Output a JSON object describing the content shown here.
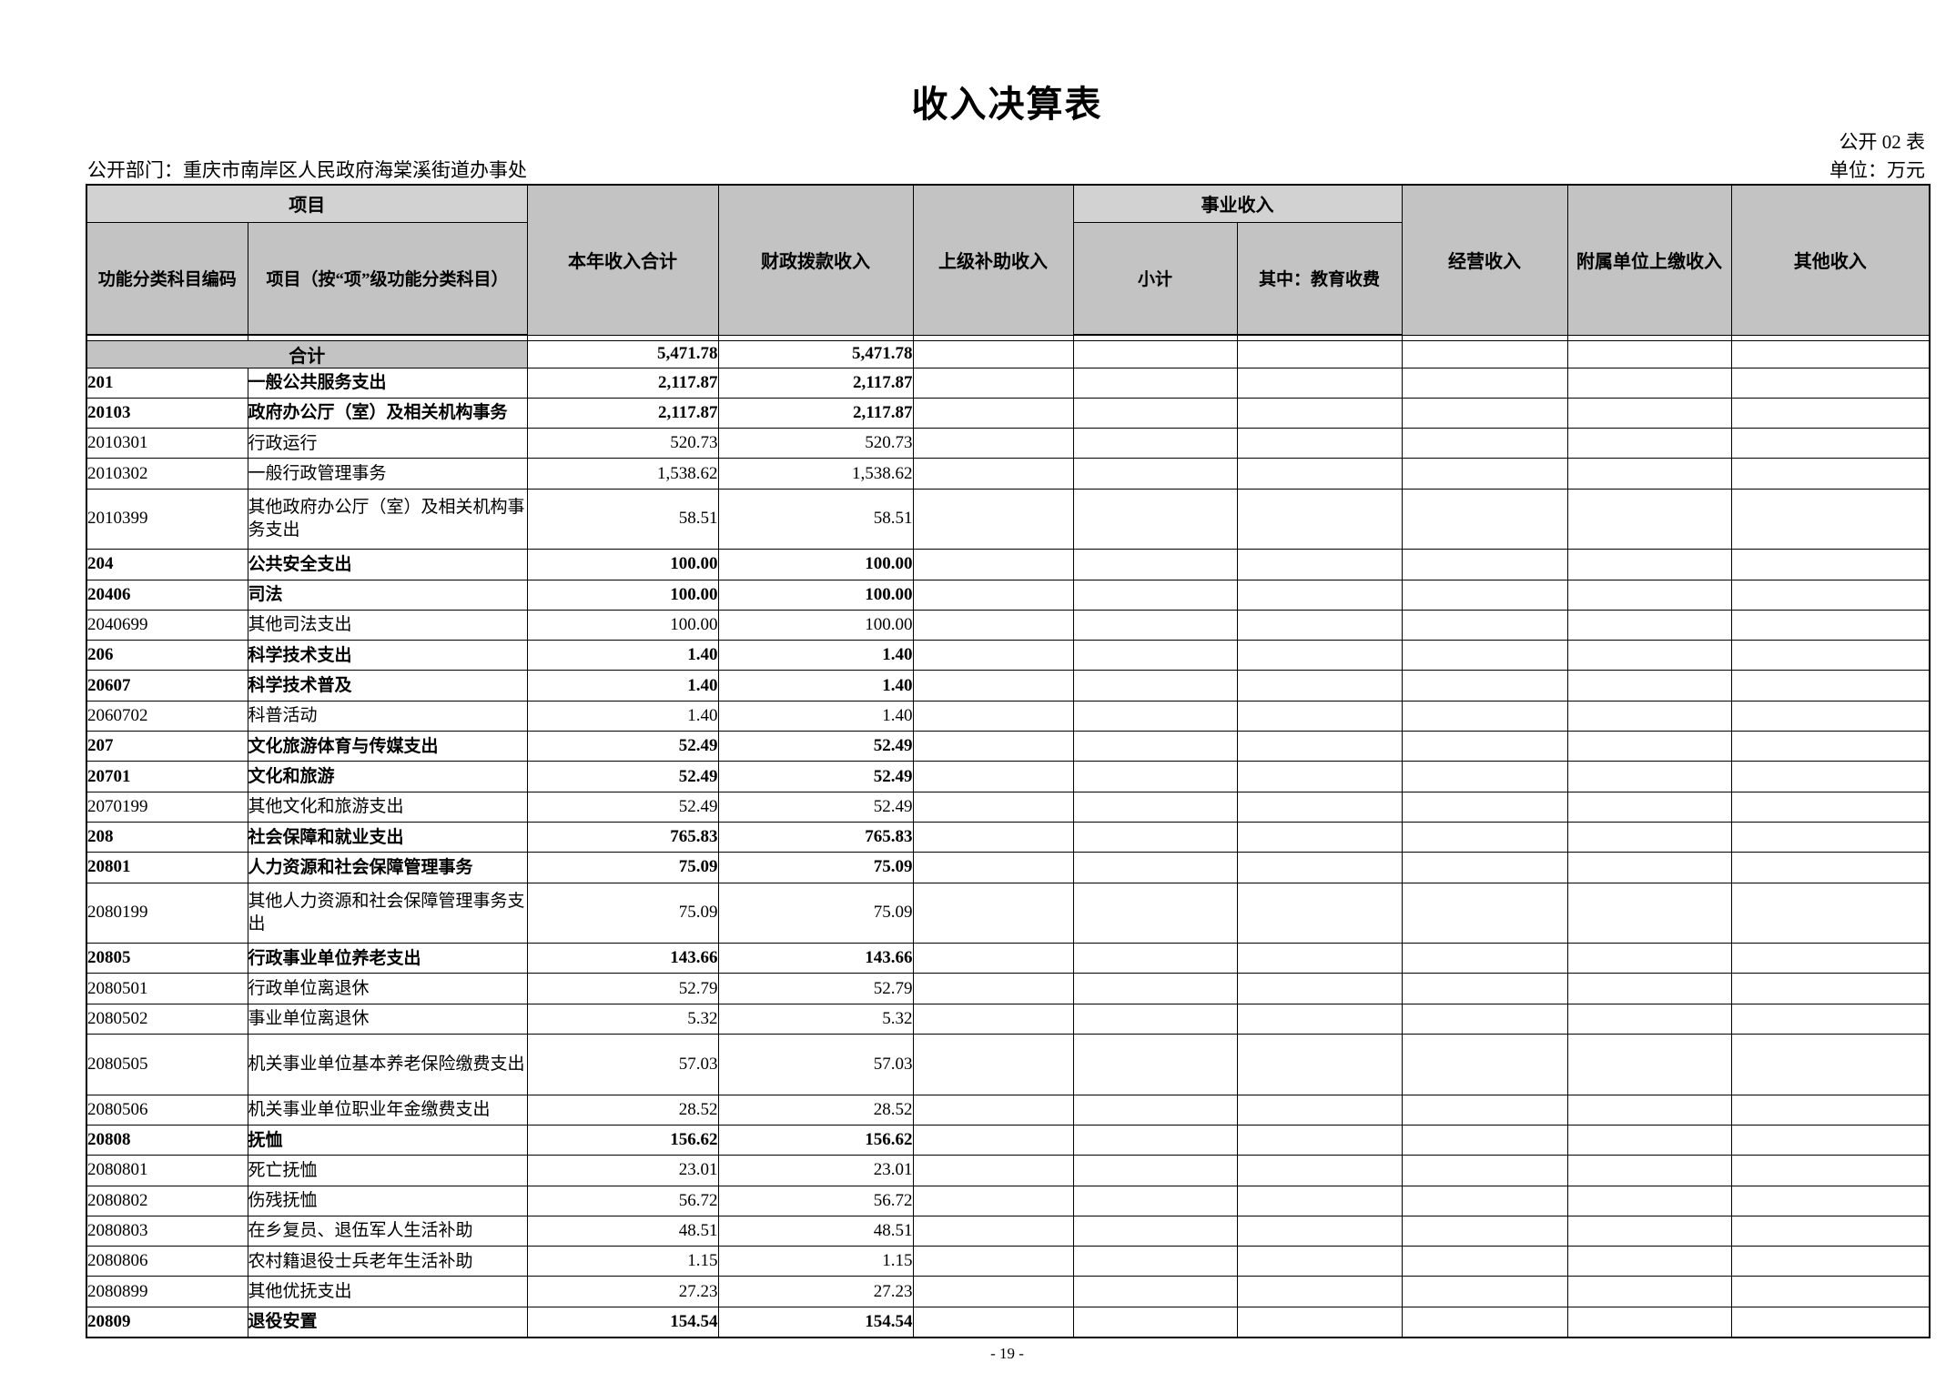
{
  "page": {
    "title": "收入决算表",
    "table_code": "公开 02 表",
    "department": "公开部门：重庆市南岸区人民政府海棠溪街道办事处",
    "unit": "单位：万元",
    "page_number": "- 19 -"
  },
  "table": {
    "header": {
      "project_group": "项目",
      "code": "功能分类科目编码",
      "item": "项目（按“项”级功能分类科目）",
      "total": "本年收入合计",
      "fiscal": "财政拨款收入",
      "superior": "上级补助收入",
      "business_group": "事业收入",
      "subtotal": "小计",
      "education": "其中：教育收费",
      "operating": "经营收入",
      "affiliated": "附属单位上缴收入",
      "other": "其他收入"
    },
    "total_row": {
      "label": "合计",
      "total": "5,471.78",
      "fiscal": "5,471.78"
    },
    "rows": [
      {
        "code": "201",
        "item": "一般公共服务支出",
        "total": "2,117.87",
        "fiscal": "2,117.87",
        "bold": true
      },
      {
        "code": "20103",
        "item": "政府办公厅（室）及相关机构事务",
        "total": "2,117.87",
        "fiscal": "2,117.87",
        "bold": true
      },
      {
        "code": "2010301",
        "item": "行政运行",
        "total": "520.73",
        "fiscal": "520.73",
        "bold": false
      },
      {
        "code": "2010302",
        "item": "一般行政管理事务",
        "total": "1,538.62",
        "fiscal": "1,538.62",
        "bold": false
      },
      {
        "code": "2010399",
        "item": "其他政府办公厅（室）及相关机构事务支出",
        "total": "58.51",
        "fiscal": "58.51",
        "bold": false
      },
      {
        "code": "204",
        "item": "公共安全支出",
        "total": "100.00",
        "fiscal": "100.00",
        "bold": true
      },
      {
        "code": "20406",
        "item": "司法",
        "total": "100.00",
        "fiscal": "100.00",
        "bold": true
      },
      {
        "code": "2040699",
        "item": "其他司法支出",
        "total": "100.00",
        "fiscal": "100.00",
        "bold": false
      },
      {
        "code": "206",
        "item": "科学技术支出",
        "total": "1.40",
        "fiscal": "1.40",
        "bold": true
      },
      {
        "code": "20607",
        "item": "科学技术普及",
        "total": "1.40",
        "fiscal": "1.40",
        "bold": true
      },
      {
        "code": "2060702",
        "item": "科普活动",
        "total": "1.40",
        "fiscal": "1.40",
        "bold": false
      },
      {
        "code": "207",
        "item": "文化旅游体育与传媒支出",
        "total": "52.49",
        "fiscal": "52.49",
        "bold": true
      },
      {
        "code": "20701",
        "item": "文化和旅游",
        "total": "52.49",
        "fiscal": "52.49",
        "bold": true
      },
      {
        "code": "2070199",
        "item": "其他文化和旅游支出",
        "total": "52.49",
        "fiscal": "52.49",
        "bold": false
      },
      {
        "code": "208",
        "item": "社会保障和就业支出",
        "total": "765.83",
        "fiscal": "765.83",
        "bold": true
      },
      {
        "code": "20801",
        "item": "人力资源和社会保障管理事务",
        "total": "75.09",
        "fiscal": "75.09",
        "bold": true
      },
      {
        "code": "2080199",
        "item": "其他人力资源和社会保障管理事务支出",
        "total": "75.09",
        "fiscal": "75.09",
        "bold": false
      },
      {
        "code": "20805",
        "item": "行政事业单位养老支出",
        "total": "143.66",
        "fiscal": "143.66",
        "bold": true
      },
      {
        "code": "2080501",
        "item": "行政单位离退休",
        "total": "52.79",
        "fiscal": "52.79",
        "bold": false
      },
      {
        "code": "2080502",
        "item": "事业单位离退休",
        "total": "5.32",
        "fiscal": "5.32",
        "bold": false
      },
      {
        "code": "2080505",
        "item": "机关事业单位基本养老保险缴费支出",
        "total": "57.03",
        "fiscal": "57.03",
        "bold": false
      },
      {
        "code": "2080506",
        "item": "机关事业单位职业年金缴费支出",
        "total": "28.52",
        "fiscal": "28.52",
        "bold": false
      },
      {
        "code": "20808",
        "item": "抚恤",
        "total": "156.62",
        "fiscal": "156.62",
        "bold": true
      },
      {
        "code": "2080801",
        "item": "死亡抚恤",
        "total": "23.01",
        "fiscal": "23.01",
        "bold": false
      },
      {
        "code": "2080802",
        "item": "伤残抚恤",
        "total": "56.72",
        "fiscal": "56.72",
        "bold": false
      },
      {
        "code": "2080803",
        "item": "在乡复员、退伍军人生活补助",
        "total": "48.51",
        "fiscal": "48.51",
        "bold": false
      },
      {
        "code": "2080806",
        "item": "农村籍退役士兵老年生活补助",
        "total": "1.15",
        "fiscal": "1.15",
        "bold": false
      },
      {
        "code": "2080899",
        "item": "其他优抚支出",
        "total": "27.23",
        "fiscal": "27.23",
        "bold": false
      },
      {
        "code": "20809",
        "item": "退役安置",
        "total": "154.54",
        "fiscal": "154.54",
        "bold": true
      }
    ]
  }
}
